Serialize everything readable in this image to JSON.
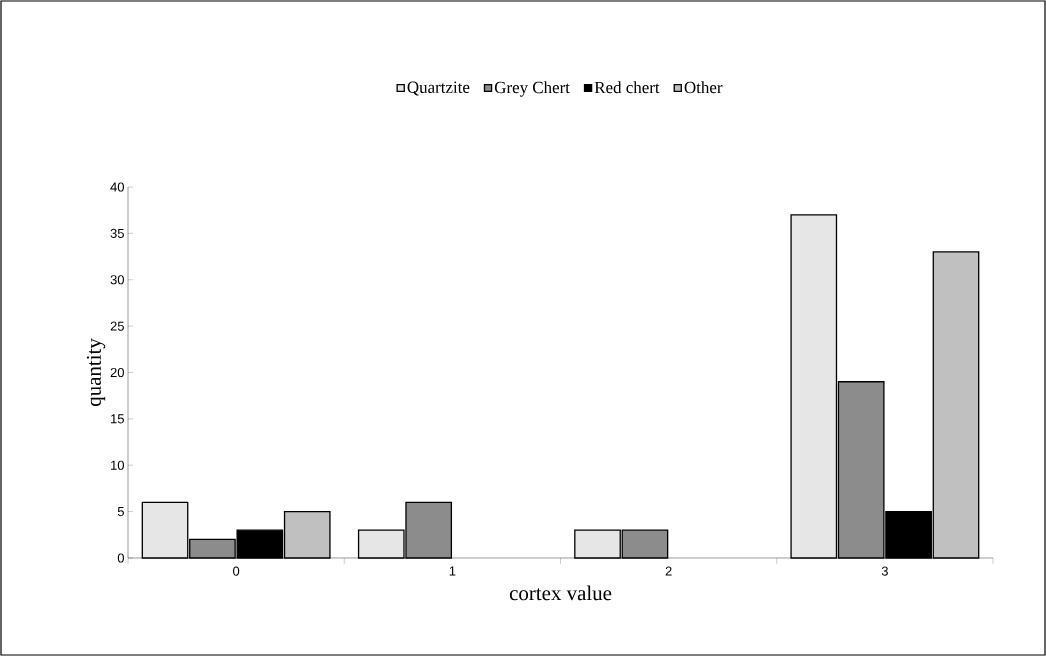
{
  "chart_data": {
    "type": "bar",
    "xlabel": "cortex value",
    "ylabel": "quantity",
    "categories": [
      "0",
      "1",
      "2",
      "3"
    ],
    "series": [
      {
        "name": "Quartzite",
        "color": "#e6e6e6",
        "values": [
          6,
          3,
          3,
          37
        ]
      },
      {
        "name": "Grey Chert",
        "color": "#8c8c8c",
        "values": [
          2,
          6,
          3,
          19
        ]
      },
      {
        "name": "Red chert",
        "color": "#000000",
        "values": [
          3,
          null,
          null,
          5
        ]
      },
      {
        "name": "Other",
        "color": "#c0c0c0",
        "values": [
          5,
          null,
          null,
          33
        ]
      }
    ],
    "ylim": [
      0,
      40
    ],
    "yticks": [
      0,
      5,
      10,
      15,
      20,
      25,
      30,
      35,
      40
    ],
    "grid": false,
    "legend": "top"
  }
}
